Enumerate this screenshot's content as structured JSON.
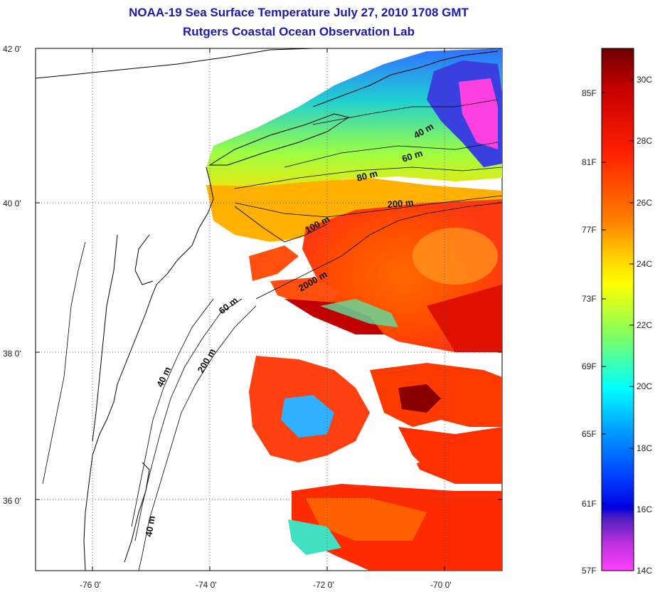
{
  "title_line1": "NOAA-19 Sea Surface Temperature July 27, 2010 1708 GMT",
  "title_line2": "Rutgers Coastal Ocean Observation Lab",
  "lat_labels": [
    "42 0'",
    "40 0'",
    "38 0'",
    "36 0'"
  ],
  "lon_labels": [
    "-76 0'",
    "-74 0'",
    "-72 0'",
    "-70 0'"
  ],
  "isobath_labels": [
    "40 m",
    "60 m",
    "80 m",
    "200 m",
    "100 m",
    "2000 m",
    "60 m",
    "40 m",
    "200 m",
    "40 m"
  ],
  "colorbar": {
    "fahrenheit": [
      "85F",
      "81F",
      "77F",
      "73F",
      "69F",
      "65F",
      "61F",
      "57F"
    ],
    "celsius": [
      "30C",
      "28C",
      "26C",
      "24C",
      "22C",
      "20C",
      "18C",
      "16C",
      "14C"
    ],
    "colors": [
      "#7a0000",
      "#ff0000",
      "#ff8000",
      "#ffff00",
      "#00ffff",
      "#0000ff",
      "#ff00ff"
    ]
  }
}
